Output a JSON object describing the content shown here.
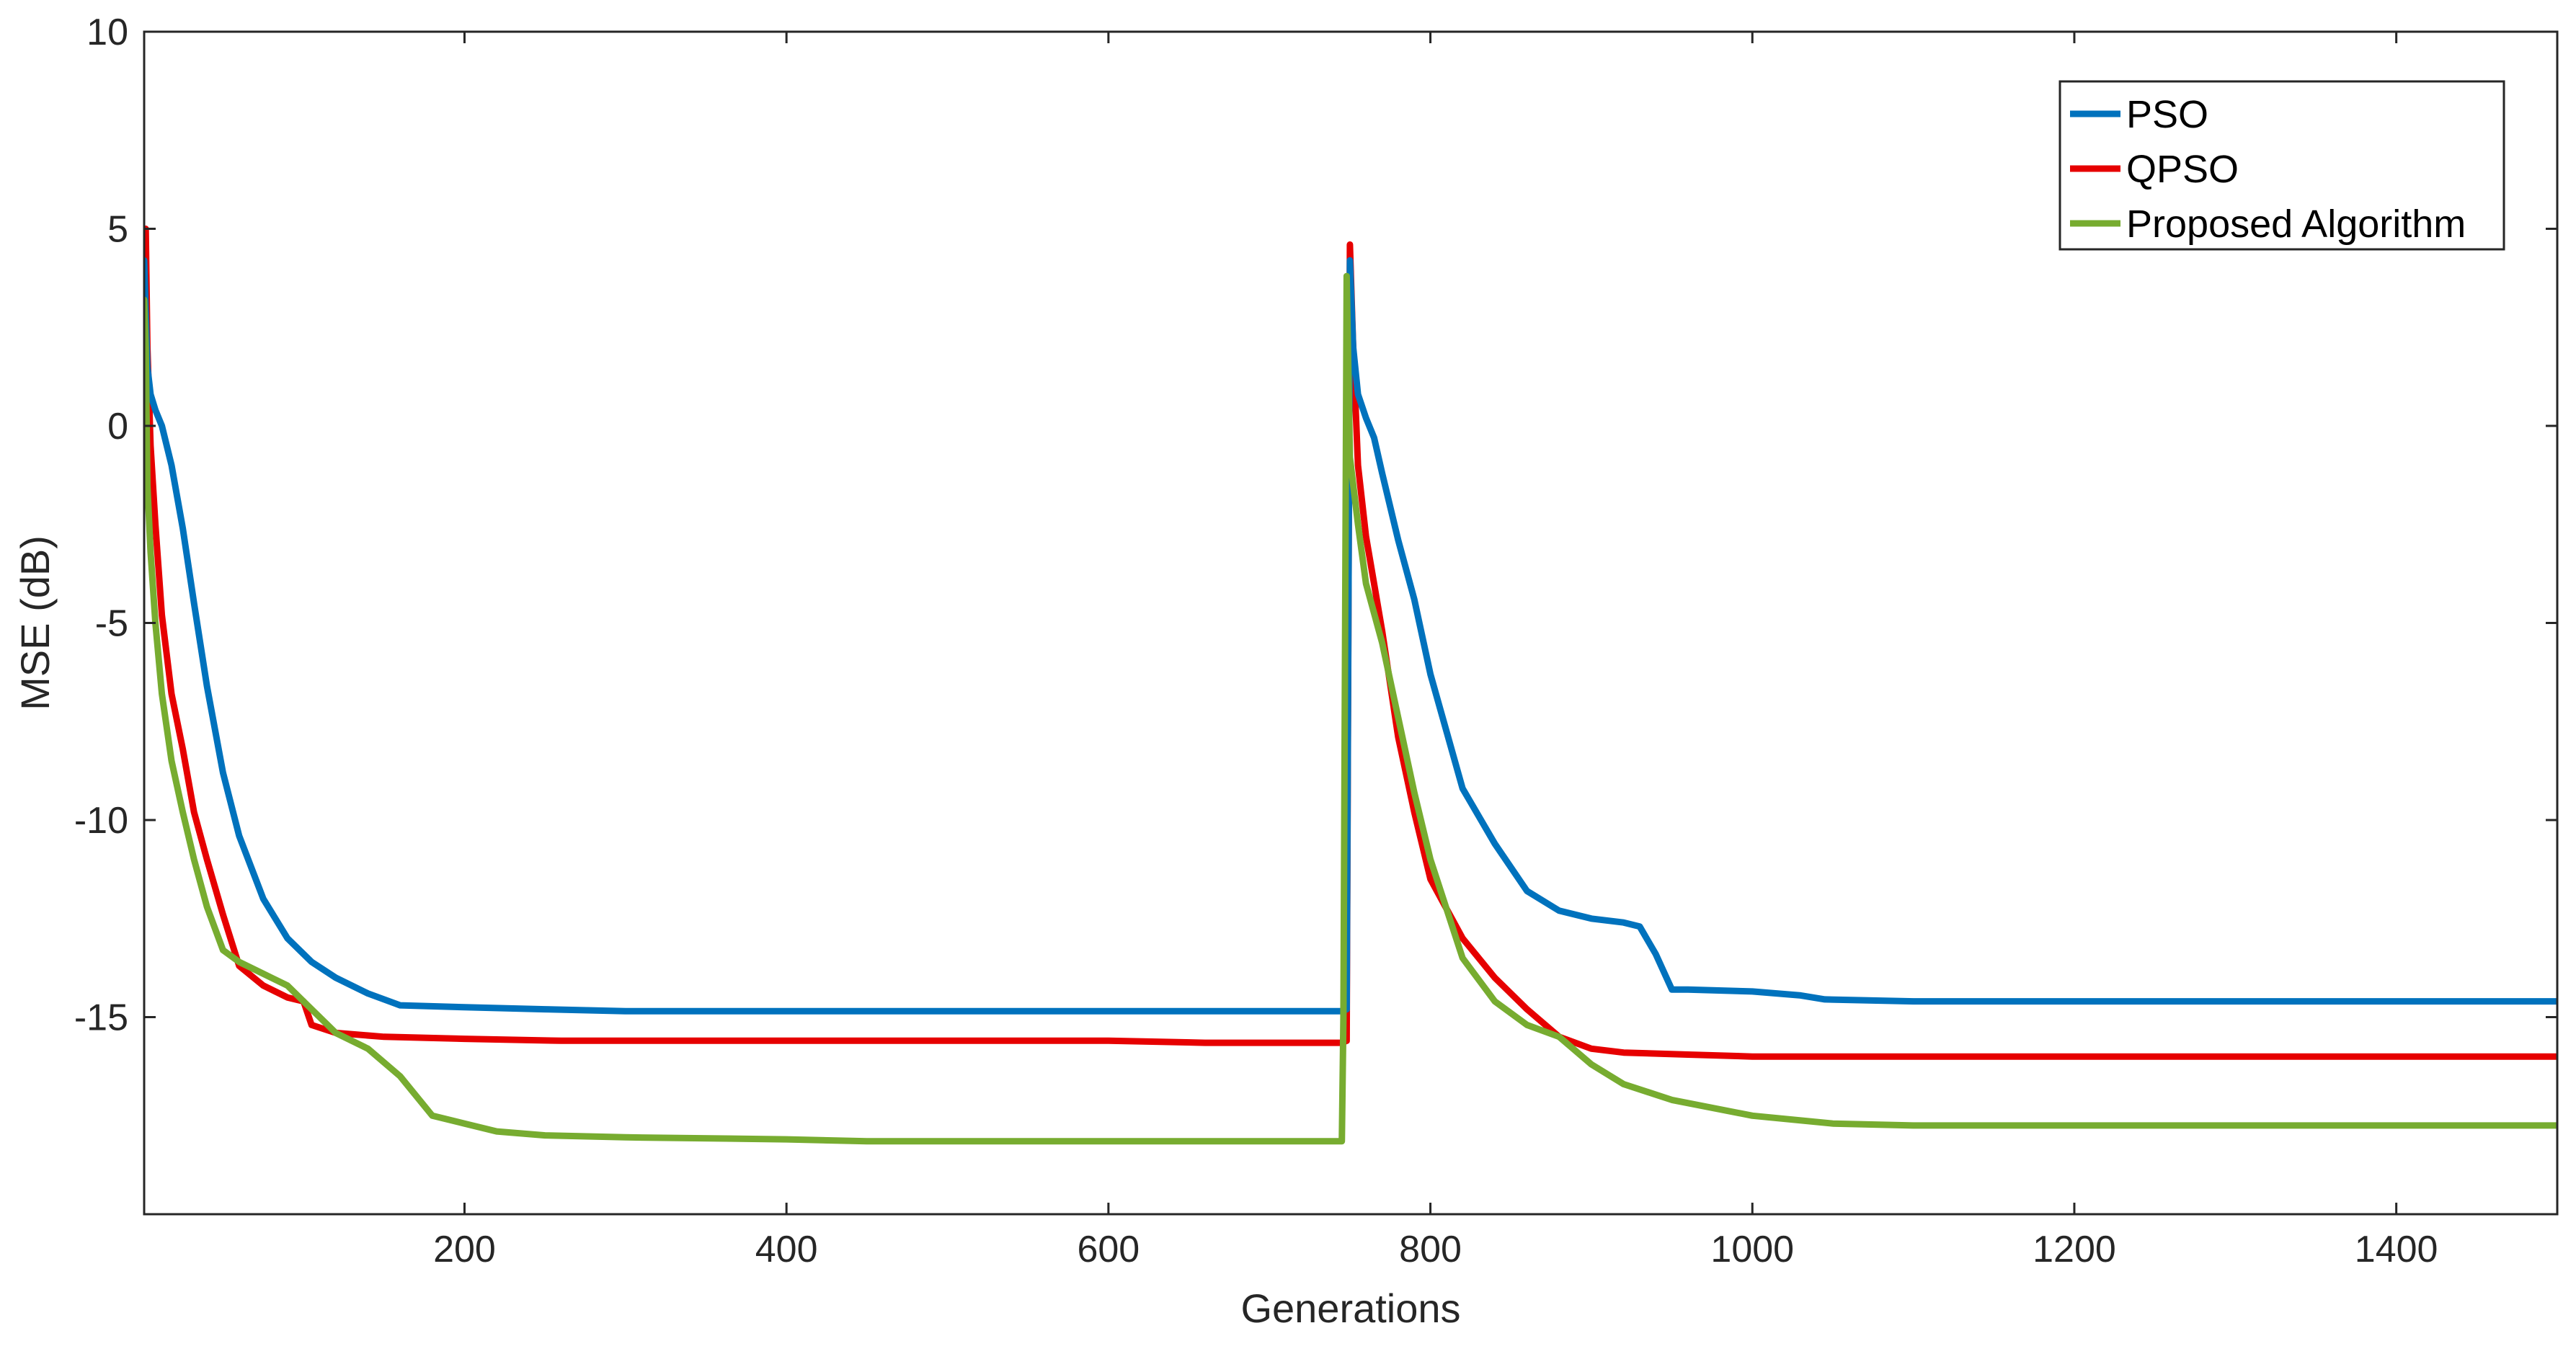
{
  "chart_data": {
    "type": "line",
    "title": "",
    "xlabel": "Generations",
    "ylabel": "MSE (dB)",
    "xlim": [
      1,
      1500
    ],
    "ylim": [
      -20,
      10
    ],
    "xticks": [
      200,
      400,
      600,
      800,
      1000,
      1200,
      1400
    ],
    "yticks": [
      10,
      5,
      0,
      -5,
      -10,
      -15
    ],
    "xtick_labels": [
      "200",
      "400",
      "600",
      "800",
      "1000",
      "1200",
      "1400"
    ],
    "ytick_labels": [
      "10",
      "5",
      "0",
      "-5",
      "-10",
      "-15"
    ],
    "grid": false,
    "legend_position": "top-right",
    "series": [
      {
        "name": "PSO",
        "color": "#0072BD",
        "x": [
          1,
          3,
          5,
          8,
          12,
          18,
          25,
          32,
          40,
          50,
          60,
          75,
          90,
          105,
          120,
          140,
          160,
          200,
          250,
          300,
          400,
          500,
          600,
          700,
          745,
          748,
          750,
          752,
          755,
          760,
          765,
          770,
          780,
          790,
          800,
          820,
          840,
          860,
          880,
          900,
          920,
          930,
          940,
          950,
          960,
          1000,
          1030,
          1045,
          1100,
          1200,
          1300,
          1400,
          1500
        ],
        "y": [
          4.2,
          1.5,
          0.8,
          0.4,
          0,
          -1,
          -2.6,
          -4.5,
          -6.6,
          -8.8,
          -10.4,
          -12.0,
          -13.0,
          -13.6,
          -14.0,
          -14.4,
          -14.7,
          -14.75,
          -14.8,
          -14.85,
          -14.85,
          -14.85,
          -14.85,
          -14.85,
          -14.85,
          -14.8,
          4.2,
          2.0,
          0.8,
          0.2,
          -0.3,
          -1.2,
          -2.9,
          -4.4,
          -6.3,
          -9.2,
          -10.6,
          -11.8,
          -12.3,
          -12.5,
          -12.6,
          -12.7,
          -13.4,
          -14.3,
          -14.3,
          -14.35,
          -14.45,
          -14.55,
          -14.6,
          -14.6,
          -14.6,
          -14.6,
          -14.6
        ]
      },
      {
        "name": "QPSO",
        "color": "#E60000",
        "x": [
          1,
          2,
          3,
          5,
          8,
          12,
          18,
          25,
          32,
          40,
          50,
          60,
          75,
          90,
          100,
          105,
          120,
          150,
          200,
          260,
          300,
          400,
          500,
          600,
          660,
          700,
          745,
          748,
          750,
          752,
          755,
          760,
          770,
          780,
          790,
          800,
          820,
          840,
          860,
          880,
          900,
          920,
          960,
          1000,
          1100,
          1200,
          1300,
          1400,
          1500
        ],
        "y": [
          3.5,
          5.0,
          2.0,
          -0.5,
          -2.5,
          -4.8,
          -6.8,
          -8.2,
          -9.8,
          -11.0,
          -12.4,
          -13.7,
          -14.2,
          -14.5,
          -14.6,
          -15.2,
          -15.4,
          -15.5,
          -15.55,
          -15.6,
          -15.6,
          -15.6,
          -15.6,
          -15.6,
          -15.65,
          -15.65,
          -15.65,
          -15.6,
          4.6,
          2.0,
          -1.0,
          -2.8,
          -5.2,
          -7.9,
          -9.8,
          -11.5,
          -13.0,
          -14.0,
          -14.8,
          -15.5,
          -15.8,
          -15.9,
          -15.95,
          -16.0,
          -16.0,
          -16.0,
          -16.0,
          -16.0,
          -16.0
        ]
      },
      {
        "name": "Proposed Algorithm",
        "color": "#77AC30",
        "x": [
          1,
          2,
          3,
          5,
          8,
          12,
          18,
          25,
          32,
          40,
          50,
          60,
          75,
          90,
          105,
          120,
          140,
          160,
          180,
          200,
          220,
          250,
          300,
          400,
          450,
          500,
          600,
          700,
          745,
          746,
          748,
          750,
          755,
          760,
          770,
          780,
          790,
          800,
          820,
          840,
          860,
          880,
          900,
          920,
          950,
          1000,
          1050,
          1100,
          1200,
          1300,
          1400,
          1500
        ],
        "y": [
          3.2,
          2.0,
          -1.5,
          -3.2,
          -5.0,
          -6.8,
          -8.5,
          -9.8,
          -11.0,
          -12.2,
          -13.3,
          -13.6,
          -13.9,
          -14.2,
          -14.8,
          -15.4,
          -15.8,
          -16.5,
          -17.5,
          -17.7,
          -17.9,
          -18.0,
          -18.05,
          -18.1,
          -18.15,
          -18.15,
          -18.15,
          -18.15,
          -18.15,
          -15.0,
          3.8,
          -0.8,
          -2.5,
          -4.0,
          -5.5,
          -7.4,
          -9.3,
          -11.0,
          -13.5,
          -14.6,
          -15.2,
          -15.5,
          -16.2,
          -16.7,
          -17.1,
          -17.5,
          -17.7,
          -17.75,
          -17.75,
          -17.75,
          -17.75,
          -17.75
        ]
      }
    ]
  }
}
